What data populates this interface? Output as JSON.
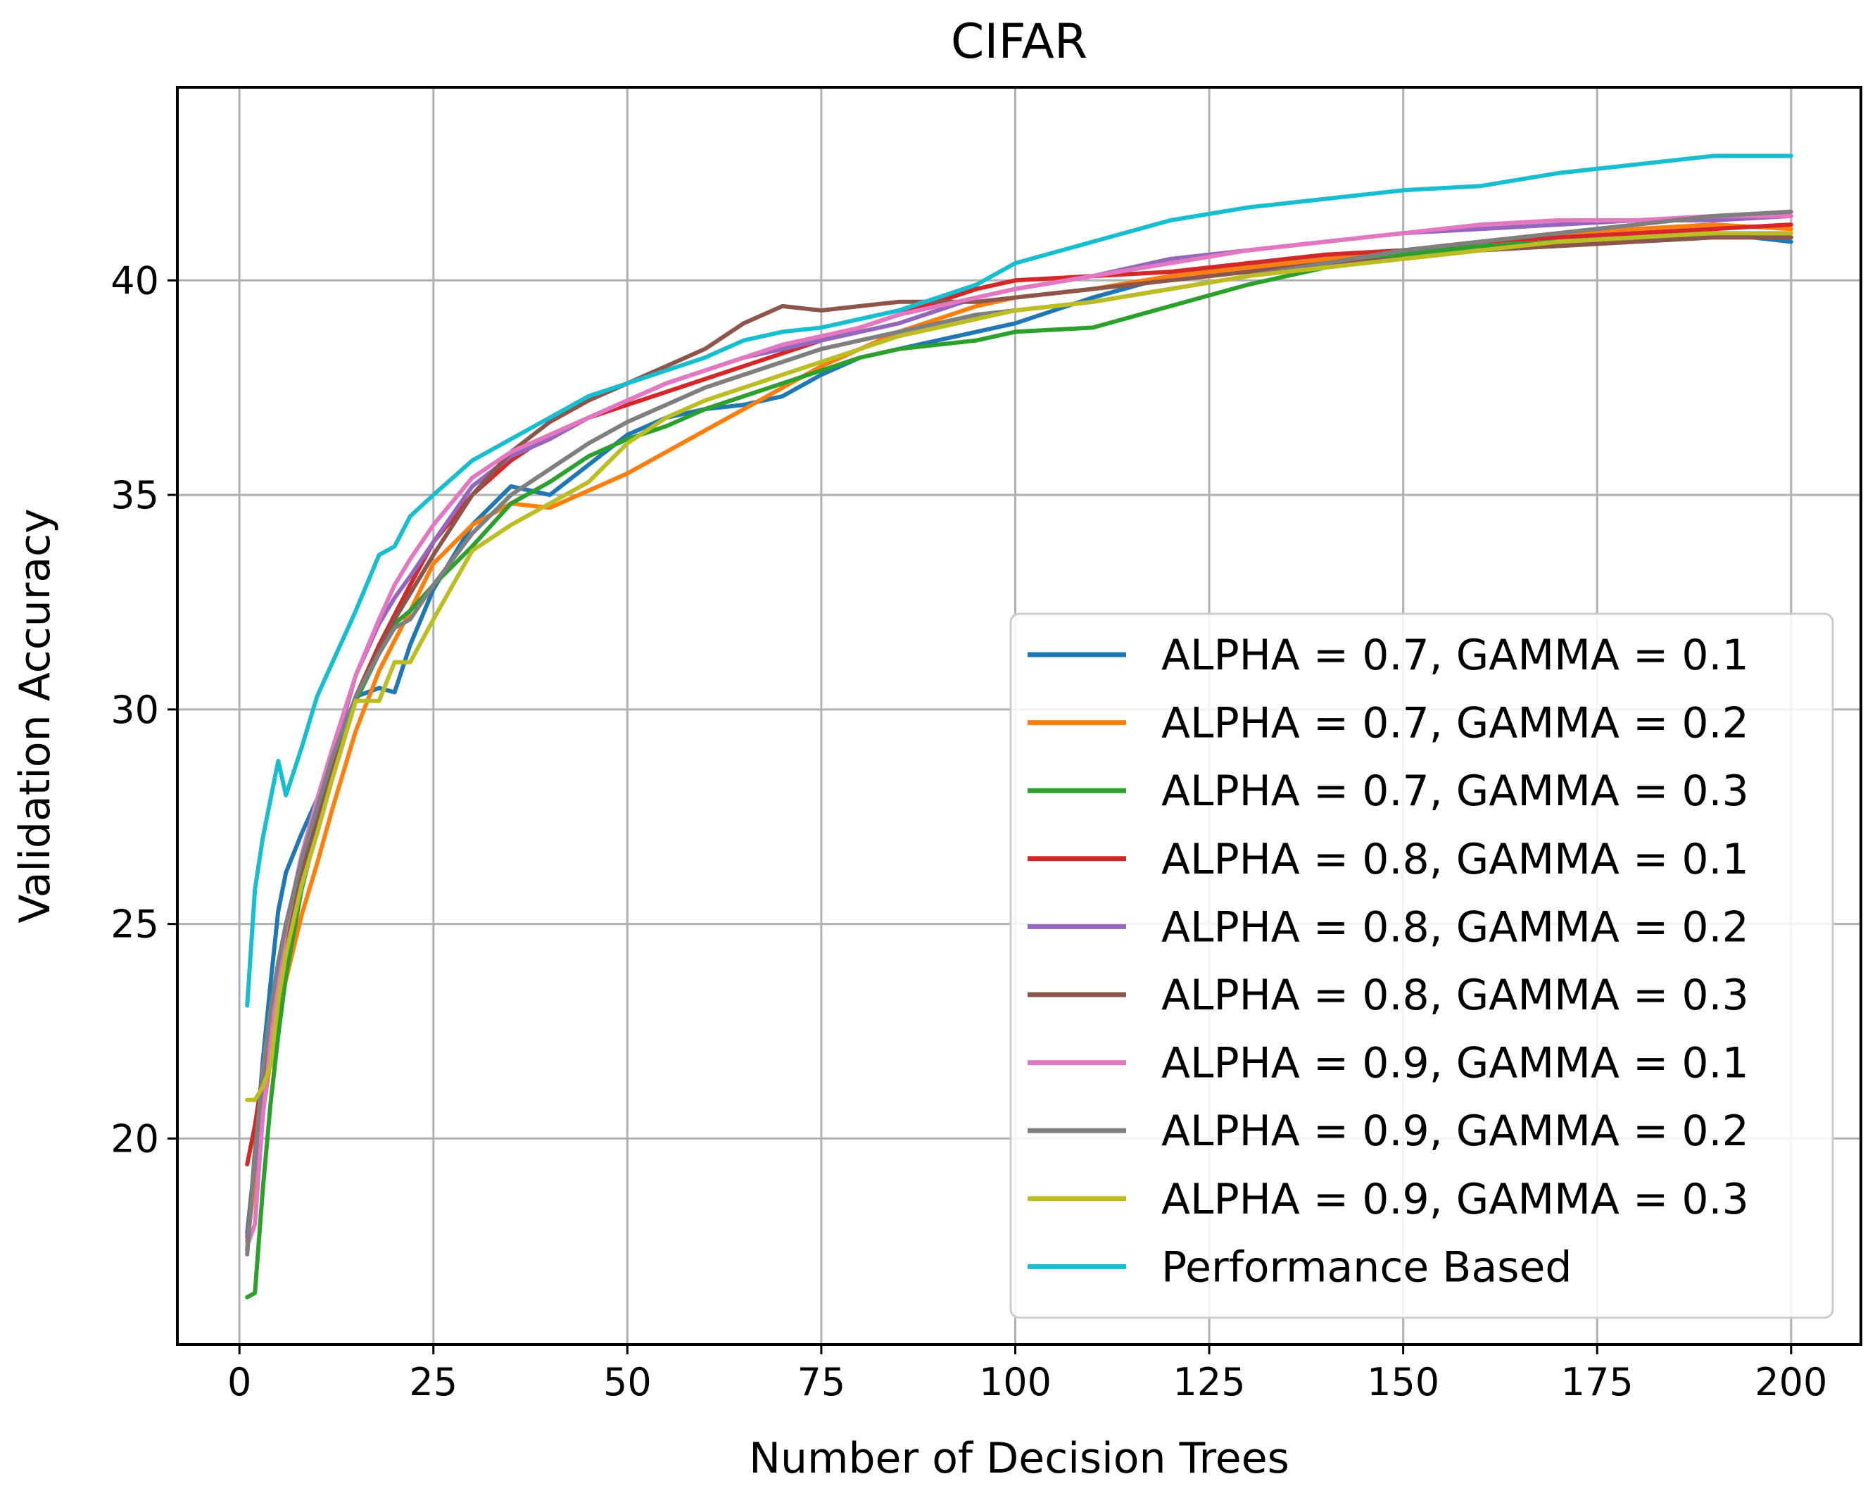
{
  "chart_data": {
    "type": "line",
    "title": "CIFAR",
    "xlabel": "Number of Decision Trees",
    "ylabel": "Validation Accuracy",
    "xlim": [
      -8,
      209
    ],
    "ylim": [
      15.2,
      44.5
    ],
    "xticks": [
      0,
      25,
      50,
      75,
      100,
      125,
      150,
      175,
      200
    ],
    "yticks": [
      20,
      25,
      30,
      35,
      40
    ],
    "grid": true,
    "legend_position": "lower-right",
    "x": [
      1,
      2,
      3,
      4,
      5,
      6,
      8,
      10,
      12,
      15,
      18,
      20,
      22,
      25,
      30,
      35,
      40,
      45,
      50,
      55,
      60,
      65,
      70,
      75,
      80,
      85,
      90,
      95,
      100,
      110,
      120,
      130,
      140,
      150,
      160,
      170,
      180,
      190,
      200
    ],
    "series": [
      {
        "name": "ALPHA = 0.7, GAMMA = 0.1",
        "color": "#1f77b4",
        "values": [
          17.8,
          19.5,
          21.8,
          23.6,
          25.3,
          26.2,
          27.1,
          27.9,
          28.8,
          30.3,
          30.5,
          30.4,
          31.5,
          32.8,
          34.3,
          35.2,
          35.0,
          35.7,
          36.4,
          36.8,
          37.0,
          37.1,
          37.3,
          37.8,
          38.2,
          38.4,
          38.6,
          38.8,
          39.0,
          39.6,
          40.1,
          40.4,
          40.5,
          40.7,
          40.8,
          40.9,
          41.0,
          41.1,
          40.9
        ]
      },
      {
        "name": "ALPHA = 0.7, GAMMA = 0.2",
        "color": "#ff7f0e",
        "values": [
          17.6,
          19.0,
          20.6,
          21.8,
          22.9,
          23.7,
          25.2,
          26.4,
          27.7,
          29.5,
          30.9,
          31.6,
          32.3,
          33.4,
          34.3,
          34.8,
          34.7,
          35.1,
          35.5,
          36.0,
          36.5,
          37.0,
          37.5,
          38.0,
          38.4,
          38.8,
          39.1,
          39.4,
          39.6,
          39.8,
          40.1,
          40.3,
          40.5,
          40.7,
          40.9,
          41.1,
          41.2,
          41.3,
          41.2
        ]
      },
      {
        "name": "ALPHA = 0.7, GAMMA = 0.3",
        "color": "#2ca02c",
        "values": [
          16.3,
          16.4,
          18.8,
          20.8,
          22.4,
          23.8,
          25.8,
          27.2,
          28.5,
          30.2,
          31.3,
          32.0,
          32.3,
          32.9,
          33.8,
          34.8,
          35.3,
          35.9,
          36.3,
          36.6,
          37.0,
          37.3,
          37.6,
          37.9,
          38.2,
          38.4,
          38.5,
          38.6,
          38.8,
          38.9,
          39.4,
          39.9,
          40.3,
          40.6,
          40.8,
          40.9,
          41.0,
          41.0,
          41.0
        ]
      },
      {
        "name": "ALPHA = 0.8, GAMMA = 0.1",
        "color": "#d62728",
        "values": [
          19.4,
          20.3,
          21.5,
          22.7,
          23.8,
          24.8,
          26.3,
          27.5,
          28.7,
          30.3,
          31.5,
          32.2,
          32.9,
          33.9,
          35.0,
          35.8,
          36.4,
          36.8,
          37.1,
          37.4,
          37.7,
          38.0,
          38.3,
          38.6,
          38.9,
          39.2,
          39.5,
          39.8,
          40.0,
          40.1,
          40.2,
          40.4,
          40.6,
          40.7,
          40.9,
          41.0,
          41.1,
          41.2,
          41.3
        ]
      },
      {
        "name": "ALPHA = 0.8, GAMMA = 0.2",
        "color": "#9467bd",
        "values": [
          17.7,
          19.4,
          21.0,
          22.5,
          23.7,
          24.7,
          26.3,
          27.5,
          28.9,
          30.8,
          32.0,
          32.6,
          33.1,
          33.9,
          35.2,
          35.9,
          36.3,
          36.8,
          37.2,
          37.6,
          37.9,
          38.2,
          38.4,
          38.6,
          38.8,
          39.0,
          39.3,
          39.6,
          39.8,
          40.1,
          40.5,
          40.7,
          40.9,
          41.1,
          41.2,
          41.3,
          41.4,
          41.4,
          41.5
        ]
      },
      {
        "name": "ALPHA = 0.8, GAMMA = 0.3",
        "color": "#8c564b",
        "values": [
          17.4,
          19.7,
          21.4,
          22.7,
          23.8,
          24.7,
          26.2,
          27.4,
          28.6,
          30.3,
          31.4,
          32.1,
          32.7,
          33.6,
          35.0,
          36.0,
          36.7,
          37.2,
          37.6,
          38.0,
          38.4,
          39.0,
          39.4,
          39.3,
          39.4,
          39.5,
          39.5,
          39.5,
          39.6,
          39.8,
          40.0,
          40.2,
          40.4,
          40.5,
          40.7,
          40.8,
          40.9,
          41.0,
          41.0
        ]
      },
      {
        "name": "ALPHA = 0.9, GAMMA = 0.1",
        "color": "#e377c2",
        "values": [
          17.5,
          18.0,
          20.5,
          22.2,
          23.7,
          24.9,
          26.6,
          27.9,
          29.1,
          30.8,
          32.1,
          32.9,
          33.5,
          34.3,
          35.4,
          36.0,
          36.4,
          36.8,
          37.2,
          37.6,
          37.9,
          38.2,
          38.5,
          38.7,
          38.9,
          39.2,
          39.4,
          39.6,
          39.8,
          40.1,
          40.4,
          40.7,
          40.9,
          41.1,
          41.3,
          41.4,
          41.4,
          41.5,
          41.5
        ]
      },
      {
        "name": "ALPHA = 0.9, GAMMA = 0.2",
        "color": "#7f7f7f",
        "values": [
          17.3,
          19.6,
          21.6,
          23.0,
          24.1,
          25.0,
          26.5,
          27.7,
          28.9,
          30.3,
          31.3,
          31.9,
          32.1,
          32.9,
          34.1,
          35.0,
          35.6,
          36.2,
          36.7,
          37.1,
          37.5,
          37.8,
          38.1,
          38.4,
          38.6,
          38.8,
          39.0,
          39.2,
          39.3,
          39.5,
          39.8,
          40.1,
          40.4,
          40.7,
          40.9,
          41.1,
          41.3,
          41.5,
          41.6
        ]
      },
      {
        "name": "ALPHA = 0.9, GAMMA = 0.3",
        "color": "#bcbd22",
        "values": [
          20.9,
          20.9,
          21.2,
          21.7,
          23.2,
          24.3,
          25.9,
          27.1,
          28.4,
          30.2,
          30.2,
          31.1,
          31.1,
          32.1,
          33.7,
          34.3,
          34.8,
          35.3,
          36.2,
          36.8,
          37.2,
          37.5,
          37.8,
          38.1,
          38.4,
          38.7,
          38.9,
          39.1,
          39.3,
          39.5,
          39.8,
          40.1,
          40.3,
          40.5,
          40.7,
          40.9,
          41.0,
          41.1,
          41.1
        ]
      },
      {
        "name": "Performance Based",
        "color": "#17becf",
        "values": [
          23.1,
          25.8,
          27.0,
          27.9,
          28.8,
          28.0,
          29.1,
          30.3,
          31.1,
          32.3,
          33.6,
          33.8,
          34.5,
          35.0,
          35.8,
          36.3,
          36.8,
          37.3,
          37.6,
          37.9,
          38.2,
          38.6,
          38.8,
          38.9,
          39.1,
          39.3,
          39.6,
          39.9,
          40.4,
          40.9,
          41.4,
          41.7,
          41.9,
          42.1,
          42.2,
          42.5,
          42.7,
          42.9,
          42.9
        ]
      }
    ]
  }
}
